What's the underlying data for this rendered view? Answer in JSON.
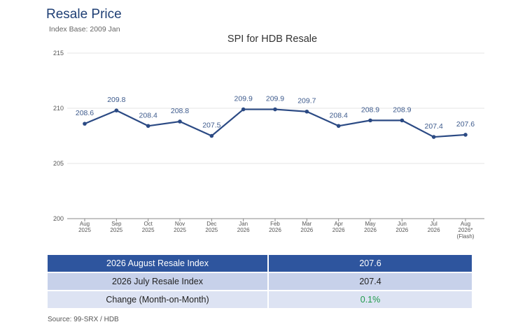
{
  "header": {
    "title": "Resale Price",
    "subtitle": "Index Base: 2009 Jan"
  },
  "chart_data": {
    "type": "line",
    "title": "SPI for HDB Resale",
    "xlabel": "",
    "ylabel": "",
    "ylim": [
      200,
      215
    ],
    "yticks": [
      200,
      205,
      210,
      215
    ],
    "grid": true,
    "categories": [
      [
        "Aug",
        "2025"
      ],
      [
        "Sep",
        "2025"
      ],
      [
        "Oct",
        "2025"
      ],
      [
        "Nov",
        "2025"
      ],
      [
        "Dec",
        "2025"
      ],
      [
        "Jan",
        "2026"
      ],
      [
        "Feb",
        "2026"
      ],
      [
        "Mar",
        "2026"
      ],
      [
        "Apr",
        "2026"
      ],
      [
        "May",
        "2026"
      ],
      [
        "Jun",
        "2026"
      ],
      [
        "Jul",
        "2026"
      ],
      [
        "Aug",
        "2026*",
        "(Flash)"
      ]
    ],
    "series": [
      {
        "values": [
          208.6,
          209.8,
          208.4,
          208.8,
          207.5,
          209.9,
          209.9,
          209.7,
          208.4,
          208.9,
          208.9,
          207.4,
          207.6
        ],
        "labels": [
          "208.6",
          "209.8",
          "208.4",
          "208.8",
          "207.5",
          "209.9",
          "209.9",
          "209.7",
          "208.4",
          "208.9",
          "208.9",
          "207.4",
          "207.6"
        ],
        "color": "#2b4a84"
      }
    ]
  },
  "summary": {
    "rows": [
      {
        "label": "2026 August Resale Index",
        "value": "207.6"
      },
      {
        "label": "2026 July Resale Index",
        "value": "207.4"
      },
      {
        "label": "Change (Month-on-Month)",
        "value": "0.1%"
      }
    ]
  },
  "colors": {
    "line": "#2b4a84",
    "header_row": "#2e559e",
    "change_positive": "#1f9a4a"
  },
  "footer": {
    "source": "Source: 99-SRX / HDB"
  }
}
